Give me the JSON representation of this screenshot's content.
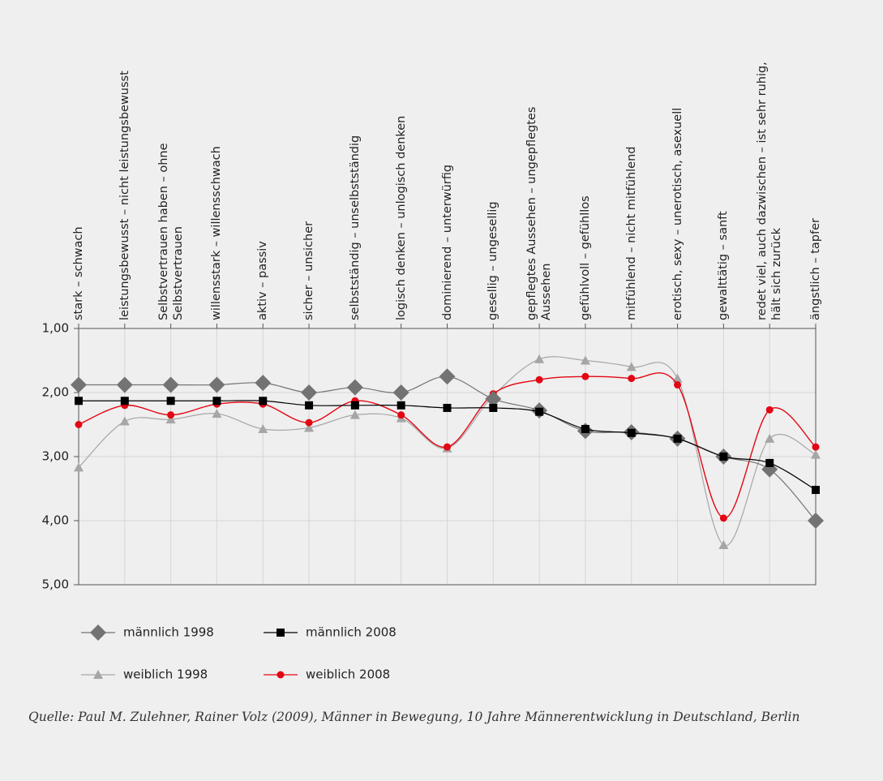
{
  "chart_data": {
    "type": "line",
    "categories": [
      "stark – schwach",
      "leistungsbewusst – nicht leistungsbewusst",
      "Selbstvertrauen haben – ohne Selbstvertrauen",
      "willensstark – willensschwach",
      "aktiv – passiv",
      "sicher – unsicher",
      "selbstständig – unselbstständig",
      "logisch denken – unlogisch denken",
      "dominierend – unterwürfig",
      "gesellig – ungesellig",
      "gepflegtes Aussehen – ungepflegtes Aussehen",
      "gefühlvoll – gefühllos",
      "mitfühlend – nicht mitfühlend",
      "erotisch, sexy – unerotisch, asexuell",
      "gewalttätig – sanft",
      "redet viel, auch dazwischen – ist sehr ruhig, hält sich zurück",
      "ängstlich – tapfer"
    ],
    "series": [
      {
        "name": "männlich 1998",
        "color": "#737373",
        "marker": "diamond",
        "values": [
          1.88,
          1.88,
          1.88,
          1.88,
          1.85,
          2.0,
          1.92,
          2.0,
          1.75,
          2.1,
          2.28,
          2.6,
          2.62,
          2.72,
          3.0,
          3.2,
          4.0
        ]
      },
      {
        "name": "männlich 2008",
        "color": "#000000",
        "marker": "square",
        "values": [
          2.13,
          2.13,
          2.13,
          2.13,
          2.13,
          2.2,
          2.2,
          2.2,
          2.24,
          2.24,
          2.3,
          2.57,
          2.63,
          2.72,
          3.0,
          3.1,
          3.52
        ]
      },
      {
        "name": "weiblich 1998",
        "color": "#a6a6a6",
        "marker": "triangle",
        "values": [
          3.17,
          2.45,
          2.42,
          2.33,
          2.57,
          2.55,
          2.35,
          2.4,
          2.87,
          2.05,
          1.48,
          1.5,
          1.6,
          1.78,
          4.38,
          2.72,
          2.97
        ]
      },
      {
        "name": "weiblich 2008",
        "color": "#e30613",
        "marker": "circle",
        "values": [
          2.5,
          2.2,
          2.35,
          2.18,
          2.18,
          2.47,
          2.13,
          2.35,
          2.85,
          2.02,
          1.8,
          1.75,
          1.78,
          1.88,
          3.96,
          2.27,
          2.85
        ]
      }
    ],
    "ylim": [
      5,
      1
    ],
    "yticks": [
      {
        "value": 1,
        "label": "1,00"
      },
      {
        "value": 2,
        "label": "2,00"
      },
      {
        "value": 3,
        "label": "3,00"
      },
      {
        "value": 4,
        "label": "4,00"
      },
      {
        "value": 5,
        "label": "5,00"
      }
    ],
    "grid": true,
    "source": "Quelle: Paul M. Zulehner, Rainer Volz (2009), Männer in Bewegung, 10 Jahre Männerentwicklung in Deutschland, Berlin"
  }
}
